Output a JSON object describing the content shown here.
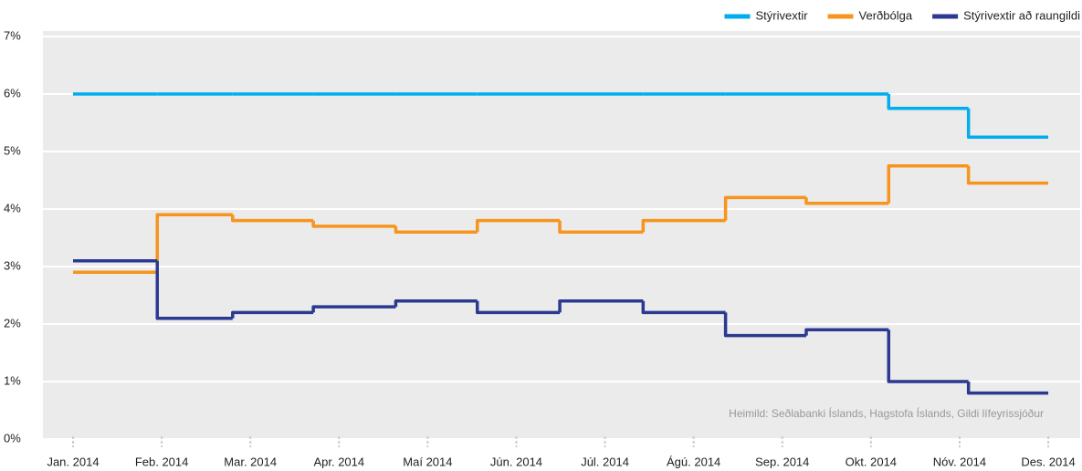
{
  "chart_data": {
    "type": "step",
    "source": "Heimild: Seðlabanki Íslands, Hagstofa Íslands, Gildi lífeyrissjóður",
    "x": [
      0,
      0.95,
      1.8,
      2.71,
      3.64,
      4.56,
      5.49,
      6.43,
      7.36,
      8.27,
      9.2,
      10.1,
      11
    ],
    "series": [
      {
        "name": "Stýrivextir",
        "color": "#00aeef",
        "values": [
          6,
          6,
          6,
          6,
          6,
          6,
          6,
          6,
          6,
          6,
          5.75,
          5.25,
          5.25
        ]
      },
      {
        "name": "Verðbólga",
        "color": "#f7941d",
        "values": [
          2.9,
          3.9,
          3.8,
          3.7,
          3.6,
          3.8,
          3.6,
          3.8,
          4.2,
          4.1,
          4.75,
          4.45,
          4.45
        ]
      },
      {
        "name": "Stýrivextir að raungildi",
        "color": "#2b3990",
        "values": [
          3.1,
          2.1,
          2.2,
          2.3,
          2.4,
          2.2,
          2.4,
          2.2,
          1.8,
          1.9,
          1.0,
          0.8,
          0.8
        ]
      }
    ],
    "xlim": [
      -0.34,
      11.36
    ],
    "xticks": [
      {
        "value": 0,
        "label": "Jan. 2014"
      },
      {
        "value": 1,
        "label": "Feb. 2014"
      },
      {
        "value": 2,
        "label": "Mar. 2014"
      },
      {
        "value": 3,
        "label": "Apr. 2014"
      },
      {
        "value": 4,
        "label": "Maí 2014"
      },
      {
        "value": 5,
        "label": "Jún. 2014"
      },
      {
        "value": 6,
        "label": "Júl. 2014"
      },
      {
        "value": 7,
        "label": "Ágú. 2014"
      },
      {
        "value": 8,
        "label": "Sep. 2014"
      },
      {
        "value": 9,
        "label": "Okt. 2014"
      },
      {
        "value": 10,
        "label": "Nóv. 2014"
      },
      {
        "value": 11,
        "label": "Des. 2014"
      }
    ],
    "ylim": [
      0,
      7
    ],
    "yticks": [
      {
        "value": 0,
        "label": "0%"
      },
      {
        "value": 1,
        "label": "1%"
      },
      {
        "value": 2,
        "label": "2%"
      },
      {
        "value": 3,
        "label": "3%"
      },
      {
        "value": 4,
        "label": "4%"
      },
      {
        "value": 5,
        "label": "5%"
      },
      {
        "value": 6,
        "label": "6%"
      },
      {
        "value": 7,
        "label": "7%"
      }
    ],
    "grid": true,
    "legend": "top-right"
  }
}
